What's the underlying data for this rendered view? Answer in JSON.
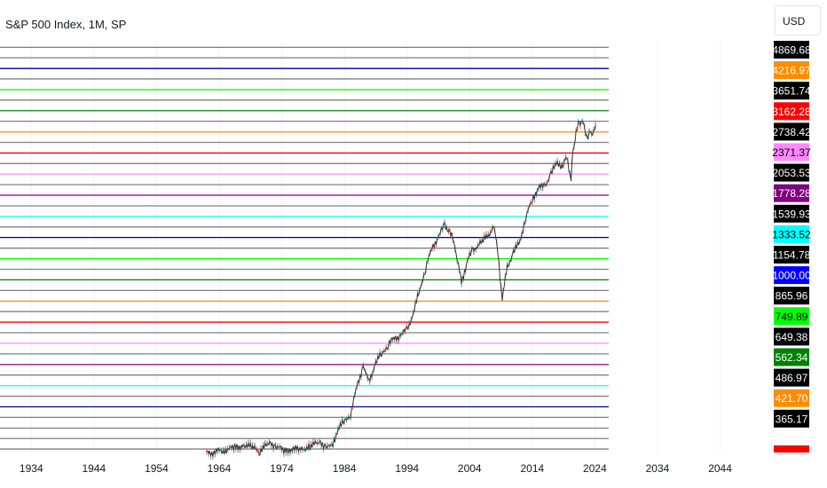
{
  "header": {
    "title": "S&P 500 Index, 1M, SP",
    "currency": "USD"
  },
  "chart_data": {
    "type": "line",
    "title": "S&P 500 Index, 1M, SP",
    "scale": "log",
    "x_axis": {
      "min": 1929,
      "max": 2052,
      "tick_labels": [
        "1934",
        "1944",
        "1954",
        "1964",
        "1974",
        "1984",
        "1994",
        "2004",
        "2014",
        "2024",
        "2034",
        "2044"
      ]
    },
    "y_axis": {
      "min": 332,
      "max": 5400,
      "scale": "log"
    },
    "price_labels": [
      {
        "value": "4869.68",
        "bg": "#000000",
        "fg": "#ffffff"
      },
      {
        "value": "4216.97",
        "bg": "#ff8c00",
        "fg": "#ffffff"
      },
      {
        "value": "3651.74",
        "bg": "#000000",
        "fg": "#ffffff"
      },
      {
        "value": "3162.28",
        "bg": "#ff0000",
        "fg": "#ffffff"
      },
      {
        "value": "2738.42",
        "bg": "#000000",
        "fg": "#ffffff"
      },
      {
        "value": "2371.37",
        "bg": "#ff88ff",
        "fg": "#000000"
      },
      {
        "value": "2053.53",
        "bg": "#000000",
        "fg": "#ffffff"
      },
      {
        "value": "1778.28",
        "bg": "#800080",
        "fg": "#ffffff"
      },
      {
        "value": "1539.93",
        "bg": "#000000",
        "fg": "#ffffff"
      },
      {
        "value": "1333.52",
        "bg": "#00ffff",
        "fg": "#000000"
      },
      {
        "value": "1154.78",
        "bg": "#000000",
        "fg": "#ffffff"
      },
      {
        "value": "1000.00",
        "bg": "#0000ff",
        "fg": "#ffffff"
      },
      {
        "value": "865.96",
        "bg": "#000000",
        "fg": "#ffffff"
      },
      {
        "value": "749.89",
        "bg": "#00ff00",
        "fg": "#000000"
      },
      {
        "value": "649.38",
        "bg": "#000000",
        "fg": "#ffffff"
      },
      {
        "value": "562.34",
        "bg": "#008000",
        "fg": "#ffffff"
      },
      {
        "value": "486.97",
        "bg": "#000000",
        "fg": "#ffffff"
      },
      {
        "value": "421.70",
        "bg": "#ff8c00",
        "fg": "#ffffff"
      },
      {
        "value": "365.17",
        "bg": "#000000",
        "fg": "#ffffff"
      }
    ],
    "level_lines": [
      {
        "value": 5228,
        "color": "#808080"
      },
      {
        "value": 4869.68,
        "color": "#808080"
      },
      {
        "value": 4527,
        "color": "#00008b"
      },
      {
        "value": 4216.97,
        "color": "#808080"
      },
      {
        "value": 3920,
        "color": "#00ff00"
      },
      {
        "value": 3651.74,
        "color": "#808080"
      },
      {
        "value": 3398,
        "color": "#008000"
      },
      {
        "value": 3162.28,
        "color": "#808080"
      },
      {
        "value": 2940,
        "color": "#ff8c00"
      },
      {
        "value": 2738.42,
        "color": "#808080"
      },
      {
        "value": 2548,
        "color": "#ff0000"
      },
      {
        "value": 2371.37,
        "color": "#808080"
      },
      {
        "value": 2208,
        "color": "#ff88ff"
      },
      {
        "value": 2053.53,
        "color": "#808080"
      },
      {
        "value": 1912,
        "color": "#800080"
      },
      {
        "value": 1778.28,
        "color": "#808080"
      },
      {
        "value": 1654,
        "color": "#00ffff"
      },
      {
        "value": 1539.93,
        "color": "#808080"
      },
      {
        "value": 1434,
        "color": "#00008b"
      },
      {
        "value": 1333.52,
        "color": "#808080"
      },
      {
        "value": 1241,
        "color": "#00ff00"
      },
      {
        "value": 1154.78,
        "color": "#808080"
      },
      {
        "value": 1075,
        "color": "#008000"
      },
      {
        "value": 1000.0,
        "color": "#808080"
      },
      {
        "value": 930,
        "color": "#ff8c00"
      },
      {
        "value": 865.96,
        "color": "#808080"
      },
      {
        "value": 806,
        "color": "#ff0000"
      },
      {
        "value": 749.89,
        "color": "#808080"
      },
      {
        "value": 698,
        "color": "#ff88ff"
      },
      {
        "value": 649.38,
        "color": "#808080"
      },
      {
        "value": 604,
        "color": "#800080"
      },
      {
        "value": 562.34,
        "color": "#808080"
      },
      {
        "value": 523,
        "color": "#00ffff"
      },
      {
        "value": 486.97,
        "color": "#808080"
      },
      {
        "value": 453,
        "color": "#00008b"
      },
      {
        "value": 421.7,
        "color": "#808080"
      },
      {
        "value": 392,
        "color": "#808080"
      },
      {
        "value": 365.17,
        "color": "#808080"
      },
      {
        "value": 340,
        "color": "#808080"
      }
    ],
    "series": [
      {
        "values": [
          {
            "x": 1962.0,
            "y": 330
          },
          {
            "x": 1965.0,
            "y": 338
          },
          {
            "x": 1966.5,
            "y": 343
          },
          {
            "x": 1968.0,
            "y": 350
          },
          {
            "x": 1969.5,
            "y": 342
          },
          {
            "x": 1970.5,
            "y": 336
          },
          {
            "x": 1972.0,
            "y": 353
          },
          {
            "x": 1973.0,
            "y": 348
          },
          {
            "x": 1974.5,
            "y": 334
          },
          {
            "x": 1975.5,
            "y": 341
          },
          {
            "x": 1977.0,
            "y": 338
          },
          {
            "x": 1978.5,
            "y": 347
          },
          {
            "x": 1980.0,
            "y": 355
          },
          {
            "x": 1981.0,
            "y": 348
          },
          {
            "x": 1982.0,
            "y": 342
          },
          {
            "x": 1983.0,
            "y": 392
          },
          {
            "x": 1984.0,
            "y": 410
          },
          {
            "x": 1985.0,
            "y": 433
          },
          {
            "x": 1986.0,
            "y": 520
          },
          {
            "x": 1987.0,
            "y": 600
          },
          {
            "x": 1987.9,
            "y": 535
          },
          {
            "x": 1989.0,
            "y": 615
          },
          {
            "x": 1990.0,
            "y": 650
          },
          {
            "x": 1991.0,
            "y": 695
          },
          {
            "x": 1992.0,
            "y": 720
          },
          {
            "x": 1993.0,
            "y": 738
          },
          {
            "x": 1994.0,
            "y": 765
          },
          {
            "x": 1995.0,
            "y": 855
          },
          {
            "x": 1996.0,
            "y": 1000
          },
          {
            "x": 1997.0,
            "y": 1170
          },
          {
            "x": 1998.0,
            "y": 1340
          },
          {
            "x": 1999.0,
            "y": 1440
          },
          {
            "x": 2000.0,
            "y": 1560
          },
          {
            "x": 2000.8,
            "y": 1495
          },
          {
            "x": 2001.5,
            "y": 1390
          },
          {
            "x": 2002.0,
            "y": 1240
          },
          {
            "x": 2002.7,
            "y": 1060
          },
          {
            "x": 2003.5,
            "y": 1200
          },
          {
            "x": 2004.5,
            "y": 1320
          },
          {
            "x": 2006.0,
            "y": 1390
          },
          {
            "x": 2007.3,
            "y": 1480
          },
          {
            "x": 2007.8,
            "y": 1560
          },
          {
            "x": 2008.5,
            "y": 1310
          },
          {
            "x": 2009.2,
            "y": 935
          },
          {
            "x": 2010.0,
            "y": 1180
          },
          {
            "x": 2011.0,
            "y": 1290
          },
          {
            "x": 2012.0,
            "y": 1400
          },
          {
            "x": 2013.0,
            "y": 1640
          },
          {
            "x": 2014.0,
            "y": 1870
          },
          {
            "x": 2015.0,
            "y": 2000
          },
          {
            "x": 2016.0,
            "y": 2050
          },
          {
            "x": 2017.0,
            "y": 2200
          },
          {
            "x": 2018.0,
            "y": 2410
          },
          {
            "x": 2018.9,
            "y": 2300
          },
          {
            "x": 2019.5,
            "y": 2520
          },
          {
            "x": 2020.2,
            "y": 2110
          },
          {
            "x": 2020.5,
            "y": 2600
          },
          {
            "x": 2021.0,
            "y": 2900
          },
          {
            "x": 2021.5,
            "y": 3150
          },
          {
            "x": 2022.0,
            "y": 3150
          },
          {
            "x": 2022.5,
            "y": 2950
          },
          {
            "x": 2022.9,
            "y": 2800
          },
          {
            "x": 2023.3,
            "y": 2960
          },
          {
            "x": 2023.8,
            "y": 2900
          },
          {
            "x": 2024.1,
            "y": 3080
          }
        ]
      }
    ]
  }
}
